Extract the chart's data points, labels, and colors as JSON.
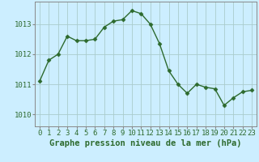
{
  "x": [
    0,
    1,
    2,
    3,
    4,
    5,
    6,
    7,
    8,
    9,
    10,
    11,
    12,
    13,
    14,
    15,
    16,
    17,
    18,
    19,
    20,
    21,
    22,
    23
  ],
  "y": [
    1011.1,
    1011.8,
    1012.0,
    1012.6,
    1012.45,
    1012.45,
    1012.5,
    1012.9,
    1013.1,
    1013.15,
    1013.45,
    1013.35,
    1013.0,
    1012.35,
    1011.45,
    1011.0,
    1010.7,
    1011.0,
    1010.9,
    1010.85,
    1010.3,
    1010.55,
    1010.75,
    1010.8
  ],
  "line_color": "#2d6a2d",
  "marker": "D",
  "marker_size": 2.5,
  "bg_color": "#cceeff",
  "grid_color": "#aacccc",
  "xlabel": "Graphe pression niveau de la mer (hPa)",
  "xlabel_fontsize": 7.5,
  "ylabel_ticks": [
    1010,
    1011,
    1012,
    1013
  ],
  "ylim": [
    1009.6,
    1013.75
  ],
  "xlim": [
    -0.5,
    23.5
  ],
  "tick_fontsize": 6.5,
  "tick_color": "#2d6a2d",
  "spine_color": "#888888"
}
